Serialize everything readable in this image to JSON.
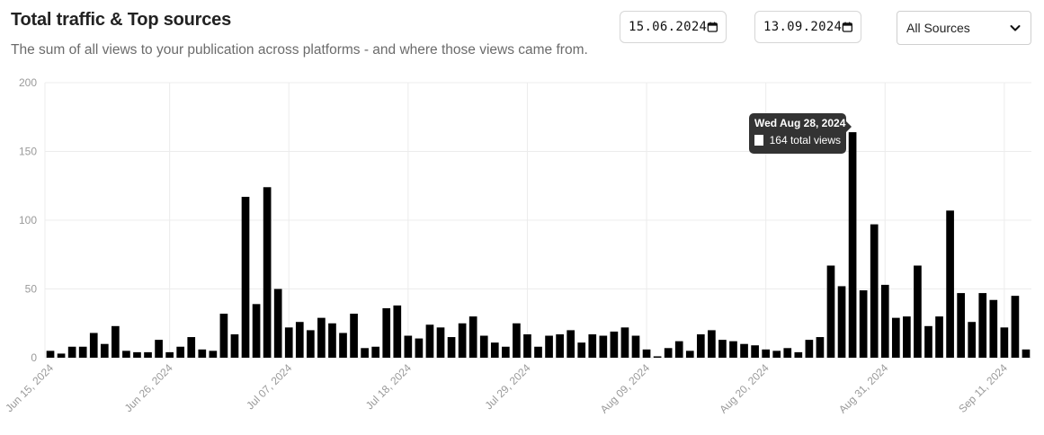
{
  "header": {
    "title": "Total traffic & Top sources",
    "subtitle": "The sum of all views to your publication across platforms - and where those views came from."
  },
  "filters": {
    "start_date": "15.06.2024",
    "end_date": "13.09.2024",
    "source": "All Sources",
    "calendar_icon": "calendar-icon",
    "chevron_icon": "chevron-down-icon"
  },
  "tooltip": {
    "date": "Wed Aug 28, 2024",
    "text": "164 total views"
  },
  "colors": {
    "bar": "#000000",
    "grid": "#ececec",
    "tooltip_bg": "#333333"
  },
  "chart_data": {
    "type": "bar",
    "start_date": "2024-06-15",
    "ylim": [
      0,
      200
    ],
    "yticks": [
      0,
      50,
      100,
      150,
      200
    ],
    "xtick_labels": [
      "Jun 15, 2024",
      "Jun 26, 2024",
      "Jul 07, 2024",
      "Jul 18, 2024",
      "Jul 29, 2024",
      "Aug 09, 2024",
      "Aug 20, 2024",
      "Aug 31, 2024",
      "Sep 11, 2024"
    ],
    "xtick_every": 11,
    "grid": true,
    "values": [
      5,
      3,
      8,
      8,
      18,
      10,
      23,
      5,
      4,
      4,
      13,
      4,
      8,
      15,
      6,
      5,
      32,
      17,
      117,
      39,
      124,
      50,
      22,
      26,
      20,
      29,
      25,
      18,
      32,
      7,
      8,
      36,
      38,
      16,
      14,
      24,
      22,
      15,
      25,
      30,
      16,
      11,
      8,
      25,
      17,
      8,
      16,
      17,
      20,
      11,
      17,
      16,
      19,
      22,
      16,
      6,
      1,
      7,
      12,
      5,
      17,
      20,
      13,
      12,
      10,
      9,
      6,
      5,
      7,
      4,
      13,
      15,
      67,
      52,
      164,
      49,
      97,
      53,
      29,
      30,
      67,
      23,
      30,
      107,
      47,
      26,
      47,
      42,
      22,
      45,
      6
    ]
  }
}
